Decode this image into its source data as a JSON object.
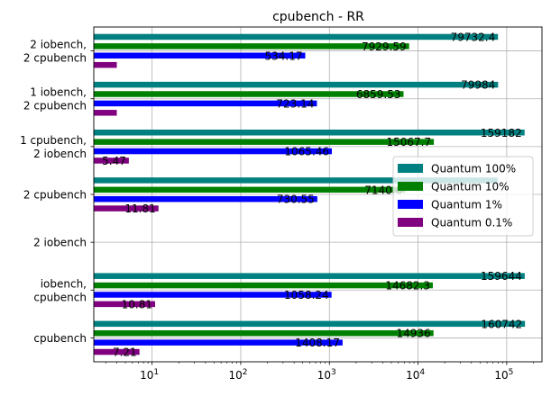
{
  "chart_data": {
    "type": "bar",
    "orientation": "horizontal",
    "title": "cpubench - RR",
    "xscale": "log",
    "xlim": [
      2.2,
      250000
    ],
    "x_ticks": [
      {
        "value": 10,
        "base": "10",
        "exp": "1"
      },
      {
        "value": 100,
        "base": "10",
        "exp": "2"
      },
      {
        "value": 1000,
        "base": "10",
        "exp": "3"
      },
      {
        "value": 10000,
        "base": "10",
        "exp": "4"
      },
      {
        "value": 100000,
        "base": "10",
        "exp": "5"
      }
    ],
    "grid": true,
    "legend_position": "center-right",
    "categories": [
      [
        "cpubench"
      ],
      [
        "iobench,",
        "cpubench"
      ],
      [
        "2 iobench"
      ],
      [
        "2 cpubench"
      ],
      [
        "1 cpubench,",
        "2 iobench"
      ],
      [
        "1 iobench,",
        "2 cpubench"
      ],
      [
        "2 iobench,",
        "2 cpubench"
      ]
    ],
    "series": [
      {
        "name": "Quantum 100%",
        "color": "#008080",
        "values": [
          160742,
          159644,
          null,
          79000,
          159182,
          79984,
          79732.4
        ],
        "labels": [
          "160742",
          "159644",
          "",
          "",
          "159182",
          "79984",
          "79732.4"
        ]
      },
      {
        "name": "Quantum 10%",
        "color": "#008000",
        "values": [
          14936,
          14682.3,
          null,
          7140.6,
          15067.7,
          6859.53,
          7929.59
        ],
        "labels": [
          "14936",
          "14682.3",
          "",
          "7140.6",
          "15067.7",
          "6859.53",
          "7929.59"
        ]
      },
      {
        "name": "Quantum 1%",
        "color": "#0000ff",
        "values": [
          1408.17,
          1058.24,
          null,
          730.55,
          1065.46,
          723.14,
          534.17
        ],
        "labels": [
          "1408.17",
          "1058.24",
          "",
          "730.55",
          "1065.46",
          "723.14",
          "534.17"
        ]
      },
      {
        "name": "Quantum 0.1%",
        "color": "#800080",
        "values": [
          7.21,
          10.81,
          null,
          11.81,
          5.47,
          4.0,
          4.0
        ],
        "labels": [
          "7.21",
          "10.81",
          "",
          "11.81",
          "5.47",
          "",
          ""
        ]
      }
    ]
  }
}
